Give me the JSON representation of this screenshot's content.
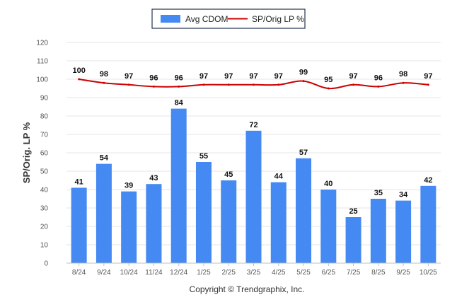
{
  "chart_data": {
    "type": "bar",
    "title": "",
    "xlabel": "",
    "ylabel": "SP/Orig. LP %",
    "ylim": [
      0,
      120
    ],
    "yticks": [
      0,
      10,
      20,
      30,
      40,
      50,
      60,
      70,
      80,
      90,
      100,
      110,
      120
    ],
    "categories": [
      "8/24",
      "9/24",
      "10/24",
      "11/24",
      "12/24",
      "1/25",
      "2/25",
      "3/25",
      "4/25",
      "5/25",
      "6/25",
      "7/25",
      "8/25",
      "9/25",
      "10/25"
    ],
    "series": [
      {
        "name": "Avg CDOM",
        "kind": "bar",
        "color": "#4589f2",
        "values": [
          41,
          54,
          39,
          43,
          84,
          55,
          45,
          72,
          44,
          57,
          40,
          25,
          35,
          34,
          42
        ]
      },
      {
        "name": "SP/Orig LP %",
        "kind": "line",
        "color": "#cc0000",
        "values": [
          100,
          98,
          97,
          96,
          96,
          97,
          97,
          97,
          97,
          99,
          95,
          97,
          96,
          98,
          97
        ]
      }
    ],
    "legend": "top-center",
    "grid": true
  },
  "footer": {
    "copyright": "Copyright © Trendgraphix, Inc."
  }
}
